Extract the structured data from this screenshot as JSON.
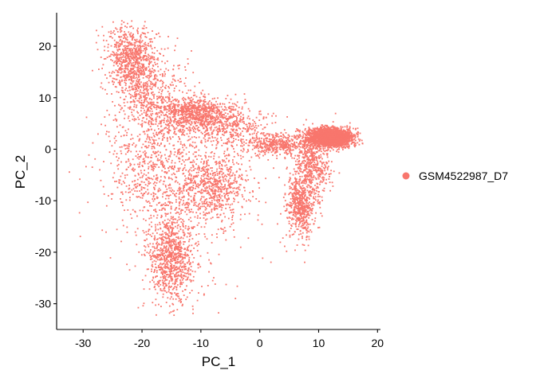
{
  "chart_data": {
    "type": "scatter",
    "title": "",
    "xlabel": "PC_1",
    "ylabel": "PC_2",
    "xlim": [
      -34.5,
      20.5
    ],
    "ylim": [
      -35,
      26.5
    ],
    "xticks": [
      -30,
      -20,
      -10,
      0,
      10,
      20
    ],
    "yticks": [
      -30,
      -20,
      -10,
      0,
      10,
      20
    ],
    "grid": false,
    "legend_position": "right",
    "series": [
      {
        "name": "GSM4522987_D7",
        "color": "#F8766D",
        "clusters": [
          {
            "cx": -22,
            "cy": 18,
            "sx": 2.2,
            "sy": 3.0,
            "n": 700
          },
          {
            "cx": -19,
            "cy": 11,
            "sx": 3.0,
            "sy": 4.0,
            "n": 500
          },
          {
            "cx": -11,
            "cy": 7,
            "sx": 3.5,
            "sy": 1.6,
            "n": 800
          },
          {
            "cx": -5,
            "cy": 4,
            "sx": 3.5,
            "sy": 2.0,
            "n": 400
          },
          {
            "cx": 3,
            "cy": 1,
            "sx": 2.5,
            "sy": 1.0,
            "n": 400
          },
          {
            "cx": 12,
            "cy": 2.3,
            "sx": 2.0,
            "sy": 0.9,
            "n": 2200
          },
          {
            "cx": 9,
            "cy": -3,
            "sx": 1.5,
            "sy": 3.0,
            "n": 500
          },
          {
            "cx": 7,
            "cy": -11,
            "sx": 1.2,
            "sy": 3.0,
            "n": 600
          },
          {
            "cx": -8,
            "cy": -7,
            "sx": 3.0,
            "sy": 3.5,
            "n": 700
          },
          {
            "cx": -15,
            "cy": -21,
            "sx": 2.0,
            "sy": 4.5,
            "n": 900
          },
          {
            "cx": -18,
            "cy": -2,
            "sx": 4.0,
            "sy": 6.0,
            "n": 700
          },
          {
            "cx": -12,
            "cy": -12,
            "sx": 7.0,
            "sy": 9.0,
            "n": 250
          }
        ]
      }
    ]
  }
}
